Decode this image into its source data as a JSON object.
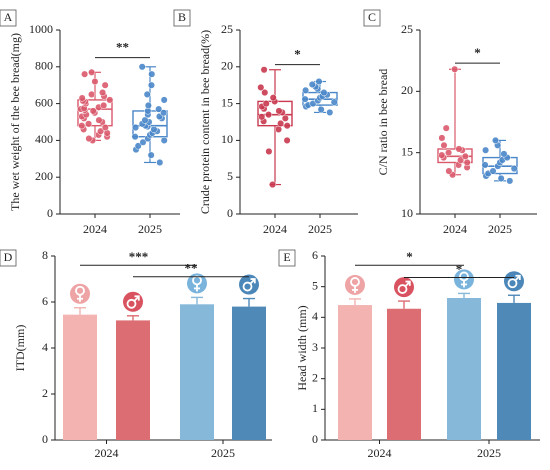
{
  "chart_data": [
    {
      "panel": "A",
      "type": "box",
      "ylabel": "The wet weight of the bee bread(mg)",
      "categories": [
        "2024",
        "2025"
      ],
      "yticks": [
        0,
        200,
        400,
        600,
        800,
        1000
      ],
      "ylim": [
        0,
        1000
      ],
      "series": [
        {
          "category": "2024",
          "color": "#d9596b",
          "box": {
            "min": 400,
            "q1": 480,
            "median": 570,
            "q3": 620,
            "max": 770
          },
          "points": [
            400,
            410,
            420,
            430,
            440,
            450,
            460,
            470,
            480,
            490,
            500,
            510,
            520,
            530,
            540,
            550,
            560,
            565,
            570,
            575,
            580,
            590,
            600,
            610,
            615,
            620,
            630,
            640,
            650,
            660,
            700,
            720,
            760,
            770
          ]
        },
        {
          "category": "2025",
          "color": "#4a87c9",
          "box": {
            "min": 280,
            "q1": 420,
            "median": 480,
            "q3": 560,
            "max": 800
          },
          "points": [
            280,
            320,
            350,
            370,
            390,
            400,
            410,
            420,
            430,
            440,
            450,
            460,
            470,
            475,
            480,
            490,
            500,
            510,
            520,
            530,
            540,
            550,
            560,
            570,
            590,
            620,
            650,
            700,
            760,
            800
          ]
        }
      ],
      "significance": {
        "label": "**",
        "between": [
          "2024",
          "2025"
        ],
        "y": 850
      }
    },
    {
      "panel": "B",
      "type": "box",
      "ylabel": "Crude protein content in bee bread(%)",
      "categories": [
        "2024",
        "2025"
      ],
      "yticks": [
        0,
        5,
        10,
        15,
        20,
        25
      ],
      "ylim": [
        0,
        25
      ],
      "series": [
        {
          "category": "2024",
          "color": "#c9394f",
          "box": {
            "min": 4.0,
            "q1": 12.0,
            "median": 13.5,
            "q3": 15.3,
            "max": 19.6
          },
          "points": [
            4.0,
            8.5,
            10.0,
            11.5,
            12.0,
            12.3,
            12.6,
            13.0,
            13.2,
            13.5,
            13.8,
            14.0,
            14.3,
            14.6,
            15.0,
            15.3,
            15.8,
            16.5,
            17.2,
            19.6
          ]
        },
        {
          "category": "2025",
          "color": "#4a87c9",
          "box": {
            "min": 13.8,
            "q1": 14.8,
            "median": 15.6,
            "q3": 16.5,
            "max": 18.0
          },
          "points": [
            13.8,
            14.2,
            14.6,
            14.8,
            15.0,
            15.2,
            15.4,
            15.6,
            15.8,
            16.0,
            16.2,
            16.5,
            16.8,
            17.0,
            17.3,
            17.6,
            18.0
          ]
        }
      ],
      "significance": {
        "label": "*",
        "between": [
          "2024",
          "2025"
        ],
        "y": 20.3
      }
    },
    {
      "panel": "C",
      "type": "box",
      "ylabel": "C/N ratio in bee bread",
      "categories": [
        "2024",
        "2025"
      ],
      "yticks": [
        10,
        15,
        20,
        25
      ],
      "ylim": [
        10,
        25
      ],
      "series": [
        {
          "category": "2024",
          "color": "#d9596b",
          "box": {
            "min": 13.2,
            "q1": 14.2,
            "median": 14.7,
            "q3": 15.3,
            "max": 21.8
          },
          "points": [
            13.2,
            13.5,
            13.8,
            14.0,
            14.2,
            14.4,
            14.6,
            14.7,
            14.8,
            15.0,
            15.2,
            15.3,
            15.6,
            16.2,
            17.0,
            21.8
          ]
        },
        {
          "category": "2025",
          "color": "#4a87c9",
          "box": {
            "min": 12.7,
            "q1": 13.3,
            "median": 13.9,
            "q3": 14.6,
            "max": 16.0
          },
          "points": [
            12.7,
            12.9,
            13.1,
            13.3,
            13.5,
            13.7,
            13.9,
            14.0,
            14.2,
            14.4,
            14.6,
            14.9,
            15.2,
            15.6,
            16.0
          ]
        }
      ],
      "significance": {
        "label": "*",
        "between": [
          "2024",
          "2025"
        ],
        "y": 22.3
      }
    },
    {
      "panel": "D",
      "type": "bar",
      "ylabel": "ITD(mm)",
      "groups": [
        "2024",
        "2025"
      ],
      "yticks": [
        0,
        2,
        4,
        6,
        8
      ],
      "ylim": [
        0,
        8
      ],
      "bars": [
        {
          "group": "2024",
          "sex": "♀",
          "value": 5.45,
          "error": 0.3,
          "color": "#f2b3b1",
          "badge": "#eea3a5"
        },
        {
          "group": "2024",
          "sex": "♂",
          "value": 5.2,
          "error": 0.2,
          "color": "#dc6d72",
          "badge": "#d9525f"
        },
        {
          "group": "2025",
          "sex": "♀",
          "value": 5.9,
          "error": 0.3,
          "color": "#86b8da",
          "badge": "#7ab4dc"
        },
        {
          "group": "2025",
          "sex": "♂",
          "value": 5.8,
          "error": 0.35,
          "color": "#4f89b8",
          "badge": "#4b87b8"
        }
      ],
      "significance": [
        {
          "label": "***",
          "from": 0,
          "to": 2,
          "y": 7.6
        },
        {
          "label": "**",
          "from": 1,
          "to": 3,
          "y": 7.1
        }
      ]
    },
    {
      "panel": "E",
      "type": "bar",
      "ylabel": "Head width (mm)",
      "groups": [
        "2024",
        "2025"
      ],
      "yticks": [
        0,
        1,
        2,
        3,
        4,
        5,
        6
      ],
      "ylim": [
        0,
        6
      ],
      "bars": [
        {
          "group": "2024",
          "sex": "♀",
          "value": 4.4,
          "error": 0.2,
          "color": "#f2b3b1",
          "badge": "#eea3a5"
        },
        {
          "group": "2024",
          "sex": "♂",
          "value": 4.28,
          "error": 0.25,
          "color": "#dc6d72",
          "badge": "#d9525f"
        },
        {
          "group": "2025",
          "sex": "♀",
          "value": 4.63,
          "error": 0.15,
          "color": "#86b8da",
          "badge": "#7ab4dc"
        },
        {
          "group": "2025",
          "sex": "♂",
          "value": 4.47,
          "error": 0.25,
          "color": "#4f89b8",
          "badge": "#4b87b8"
        }
      ],
      "significance": [
        {
          "label": "*",
          "from": 0,
          "to": 2,
          "y": 5.7
        },
        {
          "label": "*",
          "from": 1,
          "to": 3,
          "y": 5.3
        }
      ]
    }
  ]
}
